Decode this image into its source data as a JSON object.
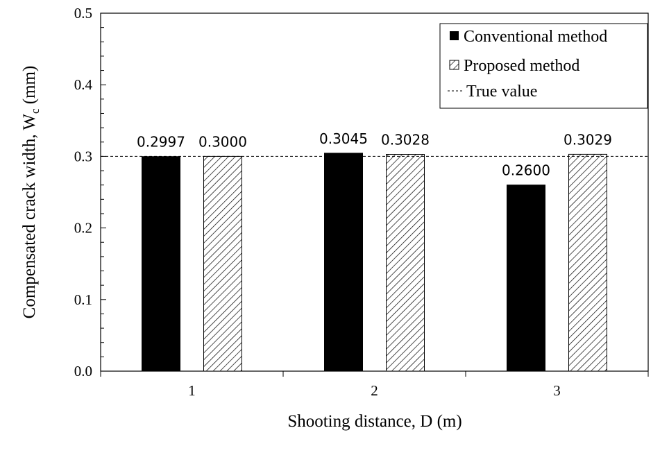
{
  "chart_data": {
    "type": "bar",
    "title": "",
    "xlabel": "Shooting distance,  D (m)",
    "ylabel_main": "Compensated  crack  width,  W",
    "ylabel_sub": "c",
    "ylabel_unit": " (mm)",
    "categories": [
      "1",
      "2",
      "3"
    ],
    "ylim": [
      0.0,
      0.5
    ],
    "yticks": [
      "0.0",
      "0.1",
      "0.2",
      "0.3",
      "0.4",
      "0.5"
    ],
    "yticks_values": [
      0.0,
      0.1,
      0.2,
      0.3,
      0.4,
      0.5
    ],
    "series": [
      {
        "name": "Conventional method",
        "values": [
          0.2997,
          0.3045,
          0.26
        ],
        "labels": [
          "0.2997",
          "0.3045",
          "0.2600"
        ],
        "fill": "#000000",
        "pattern": "solid"
      },
      {
        "name": "Proposed method",
        "values": [
          0.3,
          0.3028,
          0.3029
        ],
        "labels": [
          "0.3000",
          "0.3028",
          "0.3029"
        ],
        "fill": "#ffffff",
        "pattern": "diagonal-hatch"
      }
    ],
    "reference_line": {
      "name": "True value",
      "value": 0.3,
      "style": "dashed"
    },
    "grid": false,
    "legend_position": "top-right"
  }
}
